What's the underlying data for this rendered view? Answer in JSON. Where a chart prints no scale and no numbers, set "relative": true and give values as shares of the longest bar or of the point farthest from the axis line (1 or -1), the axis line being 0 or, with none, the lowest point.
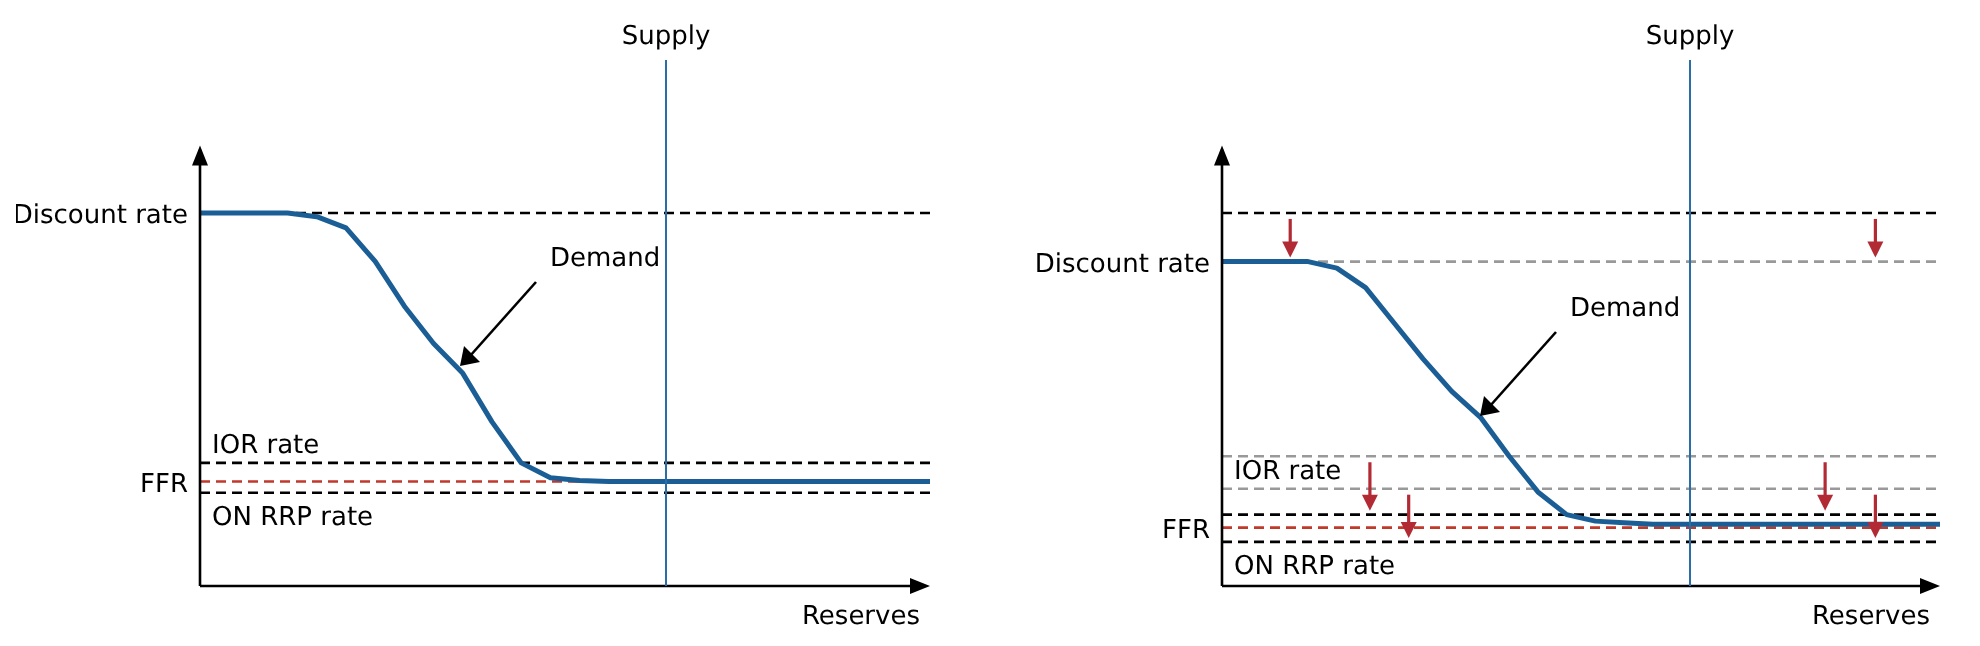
{
  "chart_data": [
    {
      "type": "line",
      "relative": true,
      "xlabel": "Reserves",
      "categories": [
        null,
        null,
        null,
        null,
        null,
        null,
        null,
        null,
        null,
        null,
        null,
        null,
        null,
        null,
        null,
        null,
        null,
        null,
        null,
        null,
        null,
        null,
        null,
        null,
        null,
        null
      ],
      "marker": "none",
      "line_style": "solid",
      "series": [
        {
          "color": "#1b5e96",
          "values": [
            1,
            1,
            1,
            1,
            0.99,
            0.96,
            0.87,
            0.75,
            0.65,
            0.57,
            0.44,
            0.33,
            0.29,
            0.283,
            0.28,
            0.28,
            0.28,
            0.28,
            0.28,
            0.28,
            0.28,
            0.28,
            0.28,
            0.28,
            0.28,
            0.28
          ]
        }
      ],
      "ref_lines": [
        {
          "axis": "y",
          "value": 1,
          "label": "Discount rate",
          "color": "#000000",
          "line_style": "dashed"
        },
        {
          "axis": "y",
          "value": 0.33,
          "label": "IOR rate",
          "color": "#000000",
          "line_style": "dashed"
        },
        {
          "axis": "y",
          "value": 0.28,
          "label": "FFR",
          "color": "#c0392b",
          "line_style": "dashed"
        },
        {
          "axis": "y",
          "value": 0.25,
          "label": "ON RRP rate",
          "color": "#000000",
          "line_style": "dashed"
        }
      ],
      "annotations": [
        "Demand",
        "Supply"
      ]
    },
    {
      "type": "line",
      "relative": true,
      "xlabel": "Reserves",
      "categories": [
        null,
        null,
        null,
        null,
        null,
        null,
        null,
        null,
        null,
        null,
        null,
        null,
        null,
        null,
        null,
        null,
        null,
        null,
        null,
        null,
        null,
        null,
        null,
        null,
        null,
        null
      ],
      "marker": "none",
      "line_style": "solid",
      "series": [
        {
          "color": "#1b5e96",
          "values": [
            1,
            1,
            1,
            1,
            0.98,
            0.92,
            0.81,
            0.7,
            0.6,
            0.52,
            0.4,
            0.29,
            0.22,
            0.2,
            0.195,
            0.19,
            0.19,
            0.19,
            0.19,
            0.19,
            0.19,
            0.19,
            0.19,
            0.19,
            0.19,
            0.19
          ]
        }
      ],
      "ref_lines": [
        {
          "axis": "y",
          "value": 1.15,
          "color": "#000000",
          "line_style": "dashed"
        },
        {
          "axis": "y",
          "value": 1,
          "label": "Discount rate",
          "color": "#999999",
          "line_style": "dashed"
        },
        {
          "axis": "y",
          "value": 0.4,
          "color": "#999999",
          "line_style": "dashed"
        },
        {
          "axis": "y",
          "value": 0.3,
          "label": "IOR rate",
          "color": "#999999",
          "line_style": "dashed"
        },
        {
          "axis": "y",
          "value": 0.22,
          "color": "#000000",
          "line_style": "dashed"
        },
        {
          "axis": "y",
          "value": 0.18,
          "label": "FFR",
          "color": "#c0392b",
          "line_style": "dashed"
        },
        {
          "axis": "y",
          "value": 0.136,
          "label": "ON RRP rate",
          "color": "#000000",
          "line_style": "dashed"
        }
      ],
      "annotations": [
        "Demand",
        "Supply"
      ]
    }
  ]
}
